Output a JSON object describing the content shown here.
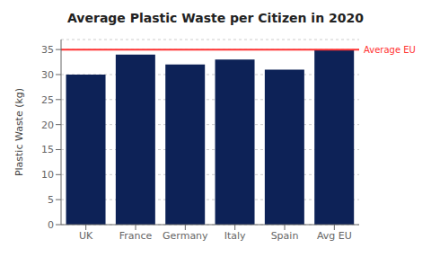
{
  "chart_data": {
    "type": "bar",
    "title": "Average Plastic Waste per Citizen in 2020",
    "categories": [
      "UK",
      "France",
      "Germany",
      "Italy",
      "Spain",
      "Avg EU"
    ],
    "values": [
      30,
      34,
      32,
      33,
      31,
      35
    ],
    "color": "#0d2257",
    "ylabel": "Plastic Waste (kg)",
    "ylim": [
      0,
      37
    ],
    "yticks": [
      0,
      5,
      10,
      15,
      20,
      25,
      30,
      35
    ],
    "grid": true,
    "annotations": [
      {
        "type": "hline",
        "y": 35,
        "text": "Average EU",
        "color": "#ff3333"
      }
    ]
  }
}
